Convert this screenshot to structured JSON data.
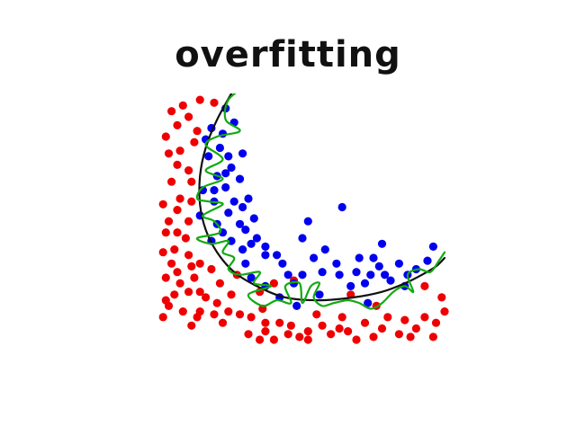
{
  "title": "overfitting",
  "colors": {
    "class_a": "#ee0000",
    "class_b": "#0000ee",
    "smooth_boundary": "#111111",
    "overfit_boundary": "#11aa11"
  },
  "chart_data": {
    "type": "scatter",
    "title": "",
    "xlabel": "",
    "ylabel": "",
    "grid": false,
    "xlim": [
      0,
      100
    ],
    "ylim": [
      0,
      100
    ],
    "series": [
      {
        "color": "#ee0000",
        "points": [
          [
            19,
            98
          ],
          [
            14,
            99
          ],
          [
            8,
            97
          ],
          [
            4,
            95
          ],
          [
            10,
            93
          ],
          [
            6,
            90
          ],
          [
            2,
            86
          ],
          [
            13,
            88
          ],
          [
            12,
            84
          ],
          [
            7,
            81
          ],
          [
            3,
            80
          ],
          [
            6,
            76
          ],
          [
            10,
            74
          ],
          [
            11,
            70
          ],
          [
            4,
            70
          ],
          [
            7,
            64
          ],
          [
            1,
            62
          ],
          [
            11,
            63
          ],
          [
            6,
            60
          ],
          [
            3,
            56
          ],
          [
            10,
            56
          ],
          [
            6,
            52
          ],
          [
            2,
            52
          ],
          [
            9,
            50
          ],
          [
            5,
            46
          ],
          [
            1,
            45
          ],
          [
            10,
            44
          ],
          [
            4,
            41
          ],
          [
            6,
            38
          ],
          [
            11,
            40
          ],
          [
            2,
            36
          ],
          [
            7,
            34
          ],
          [
            14,
            41
          ],
          [
            12,
            36
          ],
          [
            14,
            31
          ],
          [
            10,
            31
          ],
          [
            2,
            28
          ],
          [
            5,
            30
          ],
          [
            16,
            29
          ],
          [
            20,
            27
          ],
          [
            25,
            30
          ],
          [
            19,
            23
          ],
          [
            24,
            24
          ],
          [
            14,
            24
          ],
          [
            8,
            24
          ],
          [
            3,
            26
          ],
          [
            1,
            22
          ],
          [
            11,
            19
          ],
          [
            13,
            22
          ],
          [
            22,
            20
          ],
          [
            28,
            23
          ],
          [
            32,
            22
          ],
          [
            36,
            25
          ],
          [
            37,
            20
          ],
          [
            31,
            16
          ],
          [
            37,
            17
          ],
          [
            42,
            20
          ],
          [
            45,
            16
          ],
          [
            49,
            15
          ],
          [
            52,
            17
          ],
          [
            55,
            23
          ],
          [
            57,
            19
          ],
          [
            60,
            16
          ],
          [
            64,
            22
          ],
          [
            66,
            17
          ],
          [
            72,
            20
          ],
          [
            75,
            15
          ],
          [
            78,
            18
          ],
          [
            80,
            22
          ],
          [
            84,
            16
          ],
          [
            86,
            21
          ],
          [
            90,
            18
          ],
          [
            93,
            22
          ],
          [
            97,
            20
          ],
          [
            100,
            24
          ],
          [
            88,
            15
          ],
          [
            69,
            14
          ],
          [
            96,
            15
          ],
          [
            35,
            14
          ],
          [
            52,
            14
          ],
          [
            40,
            14
          ],
          [
            46,
            19
          ],
          [
            63,
            18
          ],
          [
            99,
            29
          ],
          [
            93,
            33
          ],
          [
            76,
            26
          ],
          [
            35,
            31
          ],
          [
            47,
            35
          ],
          [
            67,
            30
          ],
          [
            40,
            34
          ],
          [
            27,
            37
          ],
          [
            18,
            39
          ],
          [
            21,
            34
          ]
        ]
      },
      {
        "color": "#0000ee",
        "points": [
          [
            23,
            96
          ],
          [
            26,
            91
          ],
          [
            18,
            89
          ],
          [
            22,
            87
          ],
          [
            16,
            85
          ],
          [
            21,
            82
          ],
          [
            24,
            79
          ],
          [
            29,
            80
          ],
          [
            17,
            79
          ],
          [
            25,
            75
          ],
          [
            23,
            73
          ],
          [
            20,
            72
          ],
          [
            28,
            71
          ],
          [
            15,
            67
          ],
          [
            19,
            67
          ],
          [
            23,
            68
          ],
          [
            26,
            63
          ],
          [
            31,
            64
          ],
          [
            19,
            63
          ],
          [
            29,
            61
          ],
          [
            24,
            59
          ],
          [
            14,
            58
          ],
          [
            33,
            57
          ],
          [
            20,
            55
          ],
          [
            28,
            55
          ],
          [
            30,
            53
          ],
          [
            22,
            52
          ],
          [
            34,
            50
          ],
          [
            18,
            49
          ],
          [
            25,
            49
          ],
          [
            32,
            48
          ],
          [
            37,
            47
          ],
          [
            29,
            46
          ],
          [
            41,
            44
          ],
          [
            37,
            44
          ],
          [
            43,
            41
          ],
          [
            30,
            41
          ],
          [
            52,
            56
          ],
          [
            64,
            61
          ],
          [
            50,
            50
          ],
          [
            58,
            46
          ],
          [
            70,
            43
          ],
          [
            54,
            43
          ],
          [
            62,
            41
          ],
          [
            75,
            43
          ],
          [
            78,
            48
          ],
          [
            57,
            38
          ],
          [
            63,
            37
          ],
          [
            50,
            37
          ],
          [
            45,
            37
          ],
          [
            69,
            38
          ],
          [
            72,
            34
          ],
          [
            74,
            37
          ],
          [
            77,
            40
          ],
          [
            81,
            35
          ],
          [
            84,
            41
          ],
          [
            87,
            37
          ],
          [
            90,
            39
          ],
          [
            94,
            42
          ],
          [
            96,
            47
          ],
          [
            79,
            37
          ],
          [
            86,
            33
          ],
          [
            67,
            33
          ],
          [
            56,
            30
          ],
          [
            42,
            29
          ],
          [
            47,
            34
          ],
          [
            32,
            36
          ],
          [
            37,
            33
          ],
          [
            48,
            26
          ],
          [
            73,
            27
          ]
        ]
      }
    ],
    "curves": [
      {
        "name": "",
        "color": "#111111",
        "points": [
          [
            26,
            103
          ],
          [
            20,
            92
          ],
          [
            16,
            82
          ],
          [
            14,
            72
          ],
          [
            14,
            62
          ],
          [
            16,
            53
          ],
          [
            20,
            45
          ],
          [
            26,
            38
          ],
          [
            34,
            33
          ],
          [
            44,
            29
          ],
          [
            56,
            28
          ],
          [
            68,
            29
          ],
          [
            78,
            31
          ],
          [
            86,
            34
          ],
          [
            92,
            37
          ],
          [
            97,
            40
          ],
          [
            100,
            43
          ]
        ]
      },
      {
        "name": "",
        "color": "#11aa11",
        "points": [
          [
            30,
            104
          ],
          [
            24,
            99
          ],
          [
            23,
            92
          ],
          [
            28,
            88
          ],
          [
            20,
            86
          ],
          [
            16,
            83
          ],
          [
            22,
            78
          ],
          [
            16,
            74
          ],
          [
            22,
            71
          ],
          [
            15,
            68
          ],
          [
            13,
            64
          ],
          [
            17,
            63
          ],
          [
            22,
            62
          ],
          [
            15,
            58
          ],
          [
            19,
            56
          ],
          [
            21,
            52
          ],
          [
            13,
            50
          ],
          [
            18,
            48
          ],
          [
            24,
            49
          ],
          [
            22,
            45
          ],
          [
            26,
            43
          ],
          [
            24,
            39
          ],
          [
            28,
            37
          ],
          [
            35,
            38
          ],
          [
            33,
            34
          ],
          [
            39,
            33
          ],
          [
            31,
            30
          ],
          [
            36,
            26
          ],
          [
            41,
            28
          ],
          [
            46,
            27
          ],
          [
            44,
            33
          ],
          [
            49,
            34
          ],
          [
            50,
            27
          ],
          [
            53,
            33
          ],
          [
            56,
            34
          ],
          [
            54,
            29
          ],
          [
            57,
            26
          ],
          [
            61,
            27
          ],
          [
            66,
            28
          ],
          [
            70,
            27
          ],
          [
            74,
            25
          ],
          [
            78,
            27
          ],
          [
            82,
            31
          ],
          [
            86,
            33
          ],
          [
            89,
            31
          ],
          [
            87,
            37
          ],
          [
            91,
            39
          ],
          [
            95,
            38
          ],
          [
            98,
            42
          ],
          [
            100,
            45
          ]
        ]
      }
    ]
  }
}
